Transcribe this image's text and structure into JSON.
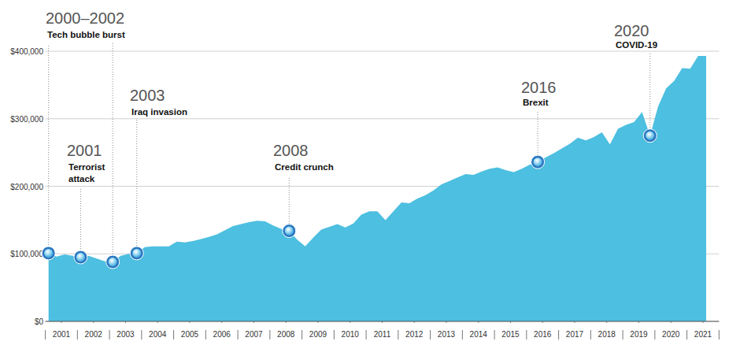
{
  "chart_data": {
    "type": "area",
    "color": "#4dbfe0",
    "grid": true,
    "x": [
      2001.1,
      2001.35,
      2001.6,
      2001.85,
      2002.1,
      2002.35,
      2002.6,
      2002.85,
      2003.1,
      2003.35,
      2003.6,
      2003.85,
      2004.1,
      2004.35,
      2004.6,
      2004.85,
      2005.1,
      2005.35,
      2005.6,
      2005.85,
      2006.1,
      2006.35,
      2006.6,
      2006.85,
      2007.1,
      2007.35,
      2007.6,
      2007.85,
      2008.1,
      2008.35,
      2008.6,
      2008.85,
      2009.1,
      2009.35,
      2009.6,
      2009.85,
      2010.1,
      2010.35,
      2010.6,
      2010.85,
      2011.1,
      2011.35,
      2011.6,
      2011.85,
      2012.1,
      2012.35,
      2012.6,
      2012.85,
      2013.1,
      2013.35,
      2013.6,
      2013.85,
      2014.1,
      2014.35,
      2014.6,
      2014.85,
      2015.1,
      2015.35,
      2015.6,
      2015.85,
      2016.1,
      2016.35,
      2016.6,
      2016.85,
      2017.1,
      2017.35,
      2017.6,
      2017.85,
      2018.1,
      2018.35,
      2018.6,
      2018.85,
      2019.1,
      2019.35,
      2019.6,
      2019.85,
      2020.1,
      2020.35,
      2020.6,
      2020.85,
      2021.1,
      2021.35,
      2021.6
    ],
    "values": [
      101000,
      96000,
      99000,
      97000,
      95000,
      97000,
      93000,
      89000,
      88000,
      97000,
      100000,
      101000,
      110000,
      111000,
      111000,
      111000,
      118000,
      117000,
      119000,
      122000,
      125000,
      129000,
      135000,
      141000,
      144000,
      147000,
      149000,
      148000,
      142000,
      137000,
      134000,
      121000,
      111000,
      124000,
      136000,
      140000,
      144000,
      139000,
      145000,
      158000,
      163000,
      163000,
      150000,
      163000,
      176000,
      175000,
      182000,
      187000,
      194000,
      203000,
      208000,
      213000,
      218000,
      217000,
      222000,
      226000,
      228000,
      224000,
      221000,
      226000,
      232000,
      236000,
      243000,
      249000,
      256000,
      263000,
      272000,
      268000,
      273000,
      280000,
      262000,
      285000,
      291000,
      295000,
      310000,
      275000,
      318000,
      345000,
      356000,
      375000,
      374000,
      393000,
      393000
    ],
    "xlim": [
      2001,
      2022
    ],
    "xticks": [
      {
        "value": 2001.5,
        "label": "2001"
      },
      {
        "value": 2002.5,
        "label": "2002"
      },
      {
        "value": 2003.5,
        "label": "2003"
      },
      {
        "value": 2004.5,
        "label": "2004"
      },
      {
        "value": 2005.5,
        "label": "2005"
      },
      {
        "value": 2006.5,
        "label": "2006"
      },
      {
        "value": 2007.5,
        "label": "2007"
      },
      {
        "value": 2008.5,
        "label": "2008"
      },
      {
        "value": 2009.5,
        "label": "2009"
      },
      {
        "value": 2010.5,
        "label": "2010"
      },
      {
        "value": 2011.5,
        "label": "2011"
      },
      {
        "value": 2012.5,
        "label": "2012"
      },
      {
        "value": 2013.5,
        "label": "2013"
      },
      {
        "value": 2014.5,
        "label": "2014"
      },
      {
        "value": 2015.5,
        "label": "2015"
      },
      {
        "value": 2016.5,
        "label": "2016"
      },
      {
        "value": 2017.5,
        "label": "2017"
      },
      {
        "value": 2018.5,
        "label": "2018"
      },
      {
        "value": 2019.5,
        "label": "2019"
      },
      {
        "value": 2020.5,
        "label": "2020"
      },
      {
        "value": 2021.5,
        "label": "2021"
      }
    ],
    "ylim": [
      0,
      400000
    ],
    "yticks": [
      {
        "value": 0,
        "label": "$0"
      },
      {
        "value": 100000,
        "label": "$100,000"
      },
      {
        "value": 200000,
        "label": "$200,000"
      },
      {
        "value": 300000,
        "label": "$300,000"
      },
      {
        "value": 400000,
        "label": "$400,000"
      }
    ],
    "annotations": [
      {
        "year": "2000–2002",
        "text": "Tech bubble burst",
        "points": [
          {
            "x": 2001.1,
            "y": 101000
          },
          {
            "x": 2003.1,
            "y": 88000
          }
        ]
      },
      {
        "year": "2001",
        "text": "Terrorist attack",
        "points": [
          {
            "x": 2002.1,
            "y": 95000
          }
        ]
      },
      {
        "year": "2003",
        "text": "Iraq invasion",
        "points": [
          {
            "x": 2003.85,
            "y": 101000
          }
        ]
      },
      {
        "year": "2008",
        "text": "Credit crunch",
        "points": [
          {
            "x": 2008.6,
            "y": 134000
          }
        ]
      },
      {
        "year": "2016",
        "text": "Brexit",
        "points": [
          {
            "x": 2016.35,
            "y": 236000
          }
        ]
      },
      {
        "year": "2020",
        "text": "COVID-19",
        "points": [
          {
            "x": 2019.85,
            "y": 275000
          }
        ]
      }
    ]
  }
}
